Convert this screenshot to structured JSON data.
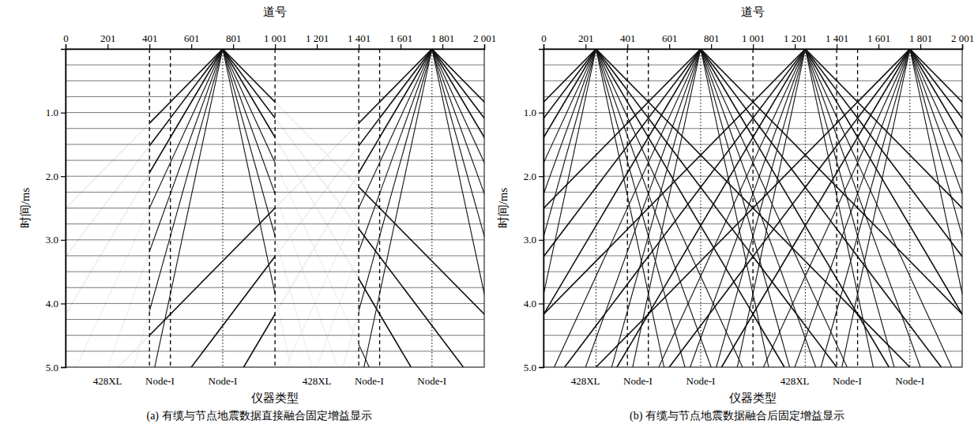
{
  "chart_data": [
    {
      "type": "seismic",
      "title": "(a) 有缆与节点地震数据直接融合固定增益显示",
      "x_label": "道号",
      "y_label": "时间/ms",
      "category_label": "仪器类型",
      "xlim": [
        0,
        2001
      ],
      "ylim": [
        0,
        5.0
      ],
      "xticks": [
        0,
        201,
        401,
        601,
        801,
        {
          "value": 1001,
          "label": "1 001"
        },
        {
          "value": 1201,
          "label": "1 201"
        },
        {
          "value": 1401,
          "label": "1 401"
        },
        {
          "value": 1601,
          "label": "1 601"
        },
        {
          "value": 1801,
          "label": "1 801"
        },
        {
          "value": 2001,
          "label": "2 001"
        }
      ],
      "yticks": [
        {
          "value": 1,
          "label": "1.0"
        },
        {
          "value": 2,
          "label": "2.0"
        },
        {
          "value": 3,
          "label": "3.0"
        },
        {
          "value": 4,
          "label": "4.0"
        },
        {
          "value": 5,
          "label": "5.0"
        }
      ],
      "time_lines": [
        0.25,
        0.5,
        0.75,
        1,
        1.25,
        1.5,
        1.75,
        2,
        2.25,
        2.5,
        2.75,
        3,
        3.25,
        3.5,
        3.75,
        4,
        4.25,
        4.5,
        4.75
      ],
      "segments": [
        {
          "instrument": "428XL",
          "start": 0,
          "amplitude": 0.08
        },
        {
          "instrument": "Node-I",
          "start": 401,
          "amplitude": 1
        },
        {
          "instrument": "Node-I",
          "start": 501,
          "amplitude": 1
        },
        {
          "instrument": "428XL",
          "start": 1001,
          "amplitude": 0.08
        },
        {
          "instrument": "Node-I",
          "start": 1401,
          "amplitude": 1
        },
        {
          "instrument": "Node-I",
          "start": 1501,
          "amplitude": 1
        }
      ],
      "shots": [
        751,
        1751
      ],
      "velocities": [
        300,
        230,
        180,
        140,
        110,
        85,
        65
      ]
    },
    {
      "type": "seismic",
      "title": "(b) 有缆与节点地震数据融合后固定增益显示",
      "x_label": "道号",
      "y_label": "时间/ms",
      "category_label": "仪器类型",
      "xlim": [
        0,
        2001
      ],
      "ylim": [
        0,
        5.0
      ],
      "xticks": [
        0,
        201,
        401,
        601,
        801,
        {
          "value": 1001,
          "label": "1 001"
        },
        {
          "value": 1201,
          "label": "1 201"
        },
        {
          "value": 1401,
          "label": "1 401"
        },
        {
          "value": 1601,
          "label": "1 601"
        },
        {
          "value": 1801,
          "label": "1 801"
        },
        {
          "value": 2001,
          "label": "2 001"
        }
      ],
      "yticks": [
        {
          "value": 1,
          "label": "1.0"
        },
        {
          "value": 2,
          "label": "2.0"
        },
        {
          "value": 3,
          "label": "3.0"
        },
        {
          "value": 4,
          "label": "4.0"
        },
        {
          "value": 5,
          "label": "5.0"
        }
      ],
      "time_lines": [
        0.25,
        0.5,
        0.75,
        1,
        1.25,
        1.5,
        1.75,
        2,
        2.25,
        2.5,
        2.75,
        3,
        3.25,
        3.5,
        3.75,
        4,
        4.25,
        4.5,
        4.75
      ],
      "segments": [
        {
          "instrument": "428XL",
          "start": 0,
          "amplitude": 1
        },
        {
          "instrument": "Node-I",
          "start": 401,
          "amplitude": 1
        },
        {
          "instrument": "Node-I",
          "start": 501,
          "amplitude": 1
        },
        {
          "instrument": "428XL",
          "start": 1001,
          "amplitude": 1
        },
        {
          "instrument": "Node-I",
          "start": 1401,
          "amplitude": 1
        },
        {
          "instrument": "Node-I",
          "start": 1501,
          "amplitude": 1
        }
      ],
      "shots": [
        251,
        751,
        1251,
        1751
      ],
      "velocities": [
        300,
        230,
        180,
        140,
        110,
        85,
        65
      ]
    }
  ]
}
